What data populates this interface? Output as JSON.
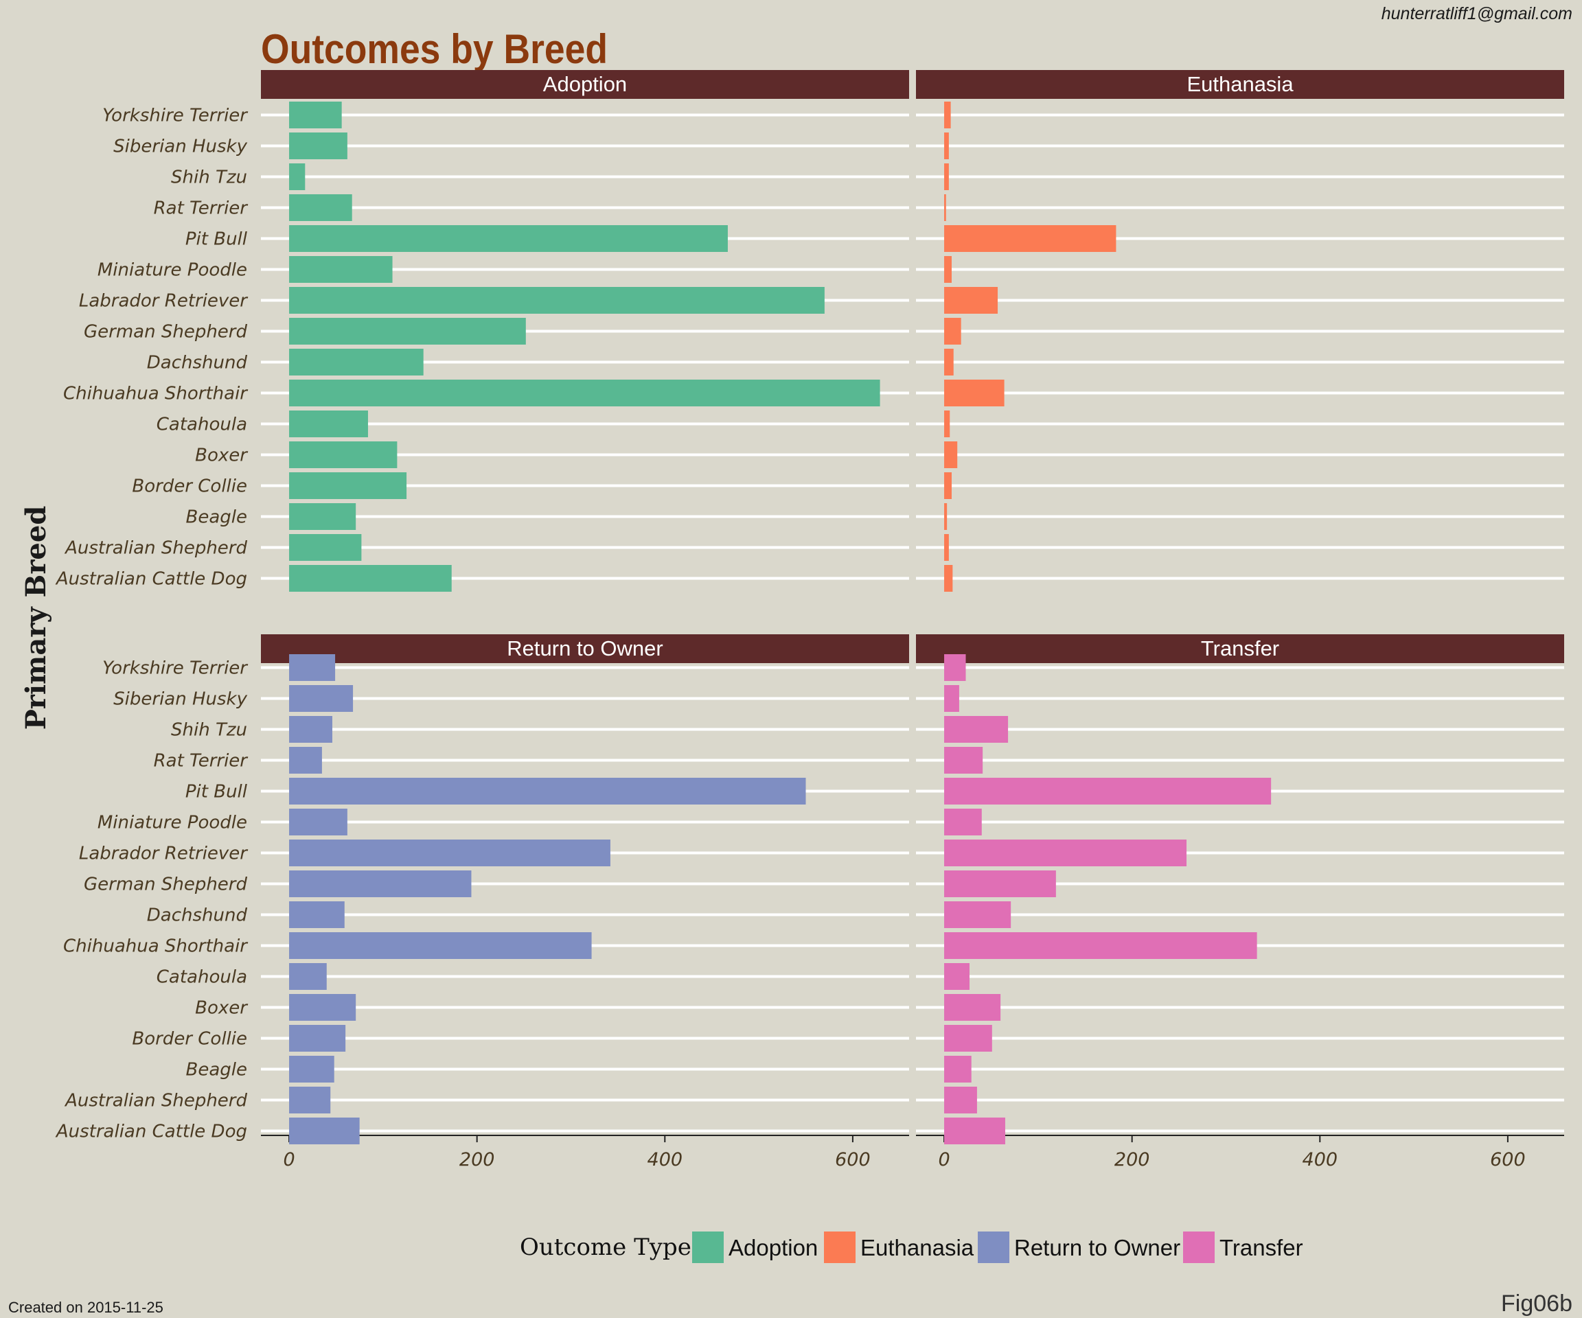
{
  "credit": "hunterratliff1@gmail.com",
  "created": "Created on 2015-11-25",
  "fig_tag": "Fig06b",
  "chart_data": {
    "type": "bar",
    "orientation": "horizontal",
    "facet": "Outcome Type",
    "title": "Outcomes by Breed",
    "ylabel": "Primary Breed",
    "xlabel": "",
    "xlim": [
      -30,
      660
    ],
    "xticks": [
      0,
      200,
      400,
      600
    ],
    "grid": true,
    "legend": {
      "title": "Outcome Type",
      "position": "bottom"
    },
    "categories": [
      "Yorkshire Terrier",
      "Siberian Husky",
      "Shih Tzu",
      "Rat Terrier",
      "Pit Bull",
      "Miniature Poodle",
      "Labrador Retriever",
      "German Shepherd",
      "Dachshund",
      "Chihuahua Shorthair",
      "Catahoula",
      "Boxer",
      "Border Collie",
      "Beagle",
      "Australian Shepherd",
      "Australian Cattle Dog"
    ],
    "series": [
      {
        "name": "Adoption",
        "color": "#58b892",
        "values": [
          56,
          62,
          17,
          67,
          467,
          110,
          570,
          252,
          143,
          629,
          84,
          115,
          125,
          71,
          77,
          173
        ]
      },
      {
        "name": "Euthanasia",
        "color": "#fb7b53",
        "values": [
          7,
          5,
          5,
          2,
          183,
          8,
          57,
          18,
          10,
          64,
          6,
          14,
          8,
          3,
          5,
          9
        ]
      },
      {
        "name": "Return to Owner",
        "color": "#7f8ec2",
        "values": [
          49,
          68,
          46,
          35,
          550,
          62,
          342,
          194,
          59,
          322,
          40,
          71,
          60,
          48,
          44,
          75
        ]
      },
      {
        "name": "Transfer",
        "color": "#e06fb5",
        "values": [
          23,
          16,
          68,
          41,
          348,
          40,
          258,
          119,
          71,
          333,
          27,
          60,
          51,
          29,
          35,
          65
        ]
      }
    ]
  }
}
